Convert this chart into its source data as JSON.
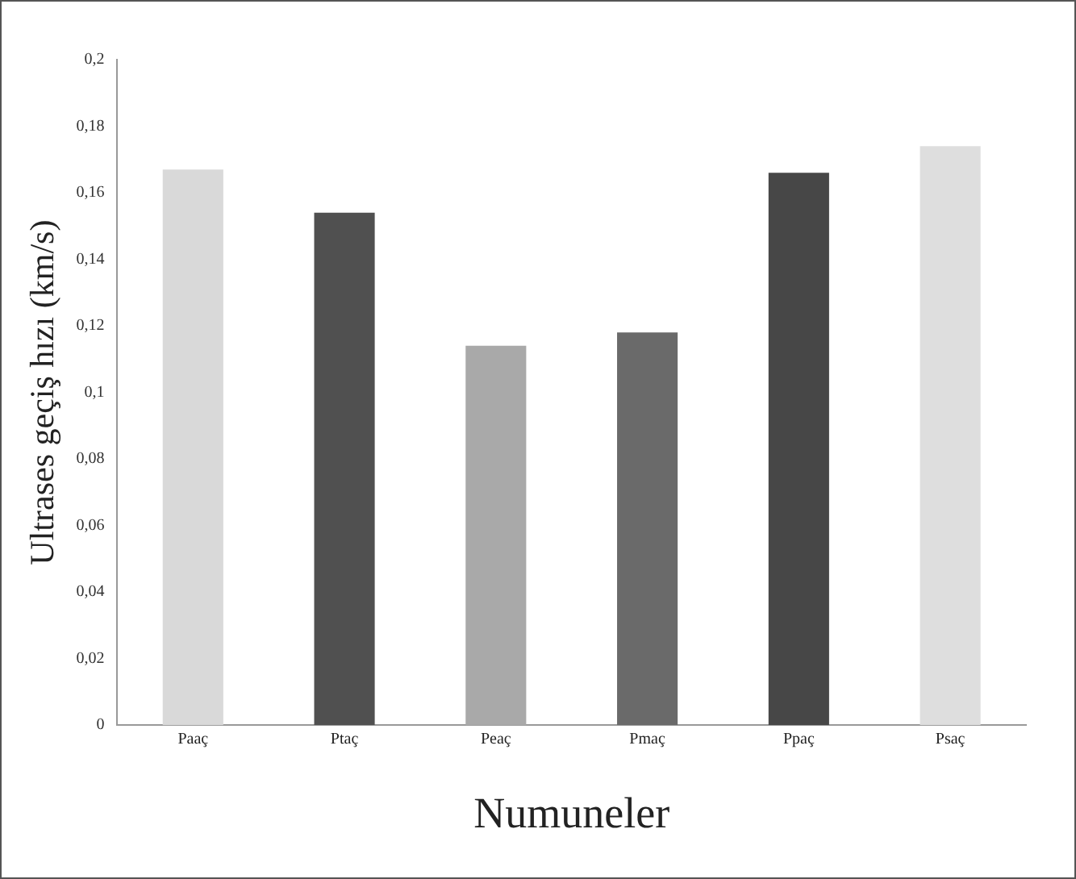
{
  "chart_data": {
    "type": "bar",
    "xlabel": "Numuneler",
    "ylabel": "Ultrases geçiş hızı (km/s)",
    "categories": [
      "Paaç",
      "Ptaç",
      "Peaç",
      "Pmaç",
      "Ppaç",
      "Psaç"
    ],
    "values": [
      0.167,
      0.154,
      0.114,
      0.118,
      0.166,
      0.174
    ],
    "colors": [
      "#d9d9d9",
      "#505050",
      "#a9a9a9",
      "#6a6a6a",
      "#474747",
      "#dedede"
    ],
    "ylim": [
      0,
      0.2
    ],
    "yticks": [
      0,
      {
        "value": 0.02,
        "label": "0,02"
      },
      {
        "value": 0.04,
        "label": "0,04"
      },
      {
        "value": 0.06,
        "label": "0,06"
      },
      {
        "value": 0.08,
        "label": "0,08"
      },
      {
        "value": 0.1,
        "label": "0,1"
      },
      {
        "value": 0.12,
        "label": "0,12"
      },
      {
        "value": 0.14,
        "label": "0,14"
      },
      {
        "value": 0.16,
        "label": "0,16"
      },
      {
        "value": 0.18,
        "label": "0,18"
      },
      {
        "value": 0.2,
        "label": "0,2"
      }
    ],
    "grid": false,
    "legend": false
  }
}
